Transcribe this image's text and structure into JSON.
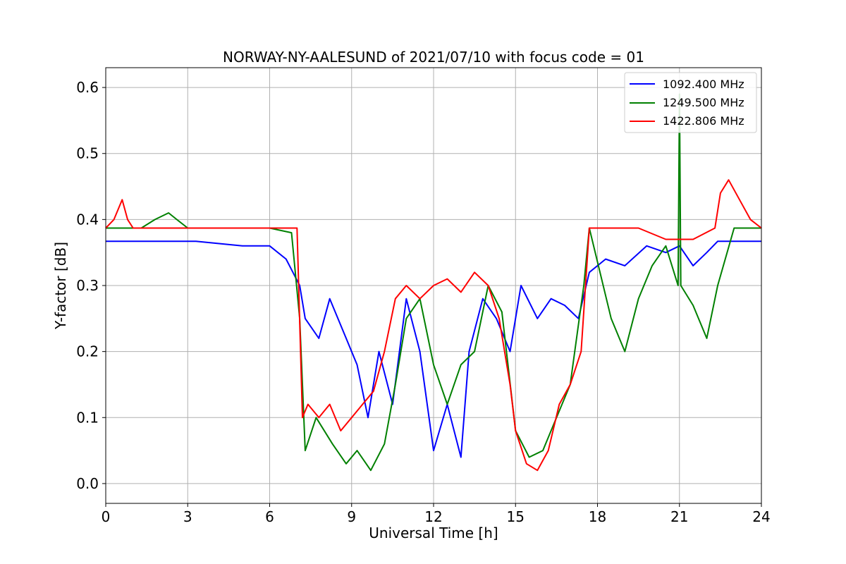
{
  "chart_data": {
    "type": "line",
    "title": "NORWAY-NY-AALESUND of 2021/07/10 with focus code = 01",
    "xlabel": "Universal Time [h]",
    "ylabel": "Y-factor [dB]",
    "xlim": [
      0,
      24
    ],
    "ylim": [
      -0.03,
      0.63
    ],
    "xticks": [
      0,
      3,
      6,
      9,
      12,
      15,
      18,
      21,
      24
    ],
    "xtick_labels": [
      "0",
      "3",
      "6",
      "9",
      "12",
      "15",
      "18",
      "21",
      "24"
    ],
    "yticks": [
      0.0,
      0.1,
      0.2,
      0.3,
      0.4,
      0.5,
      0.6
    ],
    "ytick_labels": [
      "0.0",
      "0.1",
      "0.2",
      "0.3",
      "0.4",
      "0.5",
      "0.6"
    ],
    "grid": true,
    "legend_position": "top-right",
    "series": [
      {
        "name": "1092.400 MHz",
        "color": "#0000ff",
        "x": [
          0,
          1.4,
          2.8,
          3.3,
          5.0,
          6.0,
          6.6,
          7.1,
          7.3,
          7.8,
          8.2,
          8.8,
          9.2,
          9.6,
          10.0,
          10.5,
          11.0,
          11.5,
          12.0,
          12.5,
          13.0,
          13.3,
          13.8,
          14.3,
          14.8,
          15.2,
          15.8,
          16.3,
          16.8,
          17.3,
          17.7,
          18.3,
          19.0,
          19.8,
          20.5,
          21.0,
          21.5,
          22.0,
          22.4,
          23.0,
          24.0
        ],
        "y": [
          0.367,
          0.367,
          0.367,
          0.367,
          0.36,
          0.36,
          0.34,
          0.3,
          0.25,
          0.22,
          0.28,
          0.22,
          0.18,
          0.1,
          0.2,
          0.12,
          0.28,
          0.2,
          0.05,
          0.12,
          0.04,
          0.2,
          0.28,
          0.25,
          0.2,
          0.3,
          0.25,
          0.28,
          0.27,
          0.25,
          0.32,
          0.34,
          0.33,
          0.36,
          0.35,
          0.36,
          0.33,
          0.35,
          0.367,
          0.367,
          0.367
        ]
      },
      {
        "name": "1249.500 MHz",
        "color": "#008000",
        "x": [
          0,
          1.3,
          1.8,
          2.3,
          2.6,
          3.0,
          6.0,
          6.8,
          7.1,
          7.3,
          7.7,
          8.3,
          8.8,
          9.2,
          9.7,
          10.2,
          10.6,
          11.0,
          11.5,
          12.0,
          12.5,
          13.0,
          13.5,
          14.0,
          14.5,
          15.0,
          15.5,
          16.0,
          16.5,
          17.0,
          17.5,
          17.7,
          18.5,
          19.0,
          19.5,
          20.0,
          20.5,
          20.95,
          21.0,
          21.05,
          21.5,
          22.0,
          22.4,
          23.0,
          24.0
        ],
        "y": [
          0.387,
          0.387,
          0.4,
          0.41,
          0.4,
          0.387,
          0.387,
          0.38,
          0.25,
          0.05,
          0.1,
          0.06,
          0.03,
          0.05,
          0.02,
          0.06,
          0.15,
          0.25,
          0.28,
          0.18,
          0.12,
          0.18,
          0.2,
          0.3,
          0.26,
          0.08,
          0.04,
          0.05,
          0.1,
          0.15,
          0.3,
          0.387,
          0.25,
          0.2,
          0.28,
          0.33,
          0.36,
          0.3,
          0.59,
          0.3,
          0.27,
          0.22,
          0.3,
          0.387,
          0.387
        ]
      },
      {
        "name": "1422.806 MHz",
        "color": "#ff0000",
        "x": [
          0,
          0.3,
          0.6,
          0.8,
          1.0,
          2.0,
          3.0,
          3.5,
          4.0,
          5.0,
          6.0,
          7.0,
          7.2,
          7.4,
          7.8,
          8.2,
          8.6,
          9.0,
          9.4,
          9.8,
          10.2,
          10.6,
          11.0,
          11.5,
          12.0,
          12.5,
          13.0,
          13.5,
          14.0,
          14.4,
          14.8,
          15.0,
          15.4,
          15.8,
          16.2,
          16.6,
          17.0,
          17.4,
          17.7,
          18.5,
          19.5,
          20.5,
          21.5,
          22.3,
          22.5,
          22.8,
          23.2,
          23.6,
          24.0
        ],
        "y": [
          0.387,
          0.4,
          0.43,
          0.4,
          0.387,
          0.387,
          0.387,
          0.387,
          0.387,
          0.387,
          0.387,
          0.387,
          0.1,
          0.12,
          0.1,
          0.12,
          0.08,
          0.1,
          0.12,
          0.14,
          0.2,
          0.28,
          0.3,
          0.28,
          0.3,
          0.31,
          0.29,
          0.32,
          0.3,
          0.25,
          0.15,
          0.08,
          0.03,
          0.02,
          0.05,
          0.12,
          0.15,
          0.2,
          0.387,
          0.387,
          0.387,
          0.37,
          0.37,
          0.387,
          0.44,
          0.46,
          0.43,
          0.4,
          0.387
        ]
      }
    ]
  }
}
